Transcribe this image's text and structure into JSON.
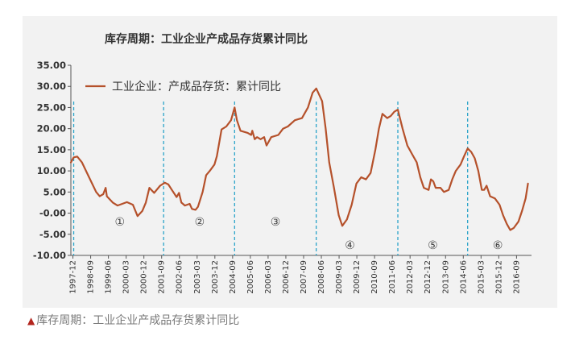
{
  "caption": {
    "marker": "▲",
    "text": "库存周期：工业企业产成品存货累计同比"
  },
  "chart_data": {
    "type": "line",
    "title": "库存周期：工业企业产成品存货累计同比",
    "xlabel": "",
    "ylabel": "",
    "ylim": [
      -10,
      35
    ],
    "yticks": [
      "35.00",
      "30.00",
      "25.00",
      "20.00",
      "15.00",
      "10.00",
      "5.00",
      "-0.00",
      "-5.00",
      "-10.00"
    ],
    "xticks": [
      "1997-12",
      "1998-09",
      "1999-06",
      "2000-03",
      "2000-12",
      "2001-09",
      "2002-06",
      "2003-03",
      "2003-12",
      "2004-09",
      "2005-06",
      "2006-03",
      "2006-12",
      "2007-09",
      "2008-06",
      "2009-03",
      "2009-12",
      "2010-09",
      "2011-06",
      "2012-03",
      "2012-12",
      "2013-09",
      "2014-06",
      "2015-03",
      "2015-12",
      "2016-09"
    ],
    "legend": {
      "position": "top-left"
    },
    "grid": false,
    "series": [
      {
        "name": "工业企业：产成品存货：累计同比",
        "color": "#b5512b",
        "points": [
          [
            1997.83,
            12.0
          ],
          [
            1997.95,
            13.2
          ],
          [
            1998.1,
            13.4
          ],
          [
            1998.3,
            12.0
          ],
          [
            1998.6,
            8.5
          ],
          [
            1998.9,
            5.0
          ],
          [
            1999.05,
            4.0
          ],
          [
            1999.2,
            4.5
          ],
          [
            1999.3,
            6.0
          ],
          [
            1999.35,
            4.0
          ],
          [
            1999.6,
            2.5
          ],
          [
            1999.8,
            1.8
          ],
          [
            2000.0,
            2.2
          ],
          [
            2000.2,
            2.6
          ],
          [
            2000.45,
            2.0
          ],
          [
            2000.65,
            -0.7
          ],
          [
            2000.85,
            0.5
          ],
          [
            2001.0,
            2.5
          ],
          [
            2001.15,
            6.0
          ],
          [
            2001.35,
            4.8
          ],
          [
            2001.6,
            6.5
          ],
          [
            2001.8,
            7.2
          ],
          [
            2001.95,
            6.8
          ],
          [
            2002.1,
            5.5
          ],
          [
            2002.3,
            3.8
          ],
          [
            2002.4,
            4.8
          ],
          [
            2002.5,
            2.5
          ],
          [
            2002.65,
            1.8
          ],
          [
            2002.85,
            2.2
          ],
          [
            2002.95,
            1.0
          ],
          [
            2003.1,
            0.8
          ],
          [
            2003.2,
            1.5
          ],
          [
            2003.4,
            5.0
          ],
          [
            2003.55,
            9.0
          ],
          [
            2003.7,
            10.0
          ],
          [
            2003.9,
            11.5
          ],
          [
            2004.0,
            13.5
          ],
          [
            2004.2,
            19.8
          ],
          [
            2004.4,
            20.5
          ],
          [
            2004.6,
            22.0
          ],
          [
            2004.75,
            25.0
          ],
          [
            2004.85,
            22.0
          ],
          [
            2005.0,
            19.5
          ],
          [
            2005.3,
            19.0
          ],
          [
            2005.45,
            18.5
          ],
          [
            2005.5,
            19.5
          ],
          [
            2005.6,
            17.5
          ],
          [
            2005.7,
            18.0
          ],
          [
            2005.85,
            17.5
          ],
          [
            2006.0,
            18.0
          ],
          [
            2006.1,
            16.0
          ],
          [
            2006.3,
            18.0
          ],
          [
            2006.6,
            18.5
          ],
          [
            2006.8,
            20.0
          ],
          [
            2007.0,
            20.5
          ],
          [
            2007.3,
            22.0
          ],
          [
            2007.6,
            22.5
          ],
          [
            2007.85,
            25.0
          ],
          [
            2008.05,
            28.5
          ],
          [
            2008.2,
            29.5
          ],
          [
            2008.45,
            26.5
          ],
          [
            2008.6,
            20.0
          ],
          [
            2008.75,
            12.0
          ],
          [
            2008.95,
            6.0
          ],
          [
            2009.15,
            -0.5
          ],
          [
            2009.3,
            -3.0
          ],
          [
            2009.5,
            -1.5
          ],
          [
            2009.7,
            2.0
          ],
          [
            2009.9,
            7.0
          ],
          [
            2010.1,
            8.5
          ],
          [
            2010.3,
            8.0
          ],
          [
            2010.5,
            9.5
          ],
          [
            2010.7,
            15.0
          ],
          [
            2010.85,
            20.0
          ],
          [
            2011.0,
            23.5
          ],
          [
            2011.2,
            22.5
          ],
          [
            2011.35,
            23.0
          ],
          [
            2011.5,
            24.0
          ],
          [
            2011.65,
            24.5
          ],
          [
            2011.85,
            20.0
          ],
          [
            2012.05,
            16.0
          ],
          [
            2012.25,
            14.0
          ],
          [
            2012.45,
            12.0
          ],
          [
            2012.6,
            8.5
          ],
          [
            2012.75,
            6.0
          ],
          [
            2012.95,
            5.5
          ],
          [
            2013.05,
            8.0
          ],
          [
            2013.15,
            7.5
          ],
          [
            2013.25,
            6.0
          ],
          [
            2013.45,
            6.0
          ],
          [
            2013.6,
            5.0
          ],
          [
            2013.8,
            5.5
          ],
          [
            2013.95,
            8.0
          ],
          [
            2014.1,
            10.0
          ],
          [
            2014.3,
            11.5
          ],
          [
            2014.45,
            13.5
          ],
          [
            2014.6,
            15.3
          ],
          [
            2014.75,
            14.5
          ],
          [
            2014.9,
            13.0
          ],
          [
            2015.05,
            10.0
          ],
          [
            2015.2,
            5.5
          ],
          [
            2015.3,
            5.5
          ],
          [
            2015.4,
            6.5
          ],
          [
            2015.55,
            4.0
          ],
          [
            2015.75,
            3.5
          ],
          [
            2015.95,
            2.0
          ],
          [
            2016.1,
            -0.5
          ],
          [
            2016.25,
            -2.5
          ],
          [
            2016.4,
            -4.0
          ],
          [
            2016.55,
            -3.5
          ],
          [
            2016.75,
            -2.0
          ],
          [
            2016.9,
            0.5
          ],
          [
            2017.05,
            3.5
          ],
          [
            2017.15,
            7.0
          ]
        ]
      }
    ],
    "cycle_markers": [
      {
        "label": "①",
        "x": 2001.85,
        "y": -2.0,
        "divider_x": 1997.95
      },
      {
        "label": "②",
        "x": 2004.8,
        "y": -2.0,
        "divider_x": 2001.75
      },
      {
        "label": "③",
        "x": 2008.2,
        "y": -2.0,
        "divider_x": 2004.75
      },
      {
        "label": "④",
        "x": 2011.05,
        "y": -7.5,
        "divider_x": 2008.2
      },
      {
        "label": "⑤",
        "x": 2014.6,
        "y": -7.5,
        "divider_x": 2011.65
      },
      {
        "label": "⑥",
        "x": 2017.15,
        "y": -7.5,
        "divider_x": 2014.6
      }
    ]
  }
}
